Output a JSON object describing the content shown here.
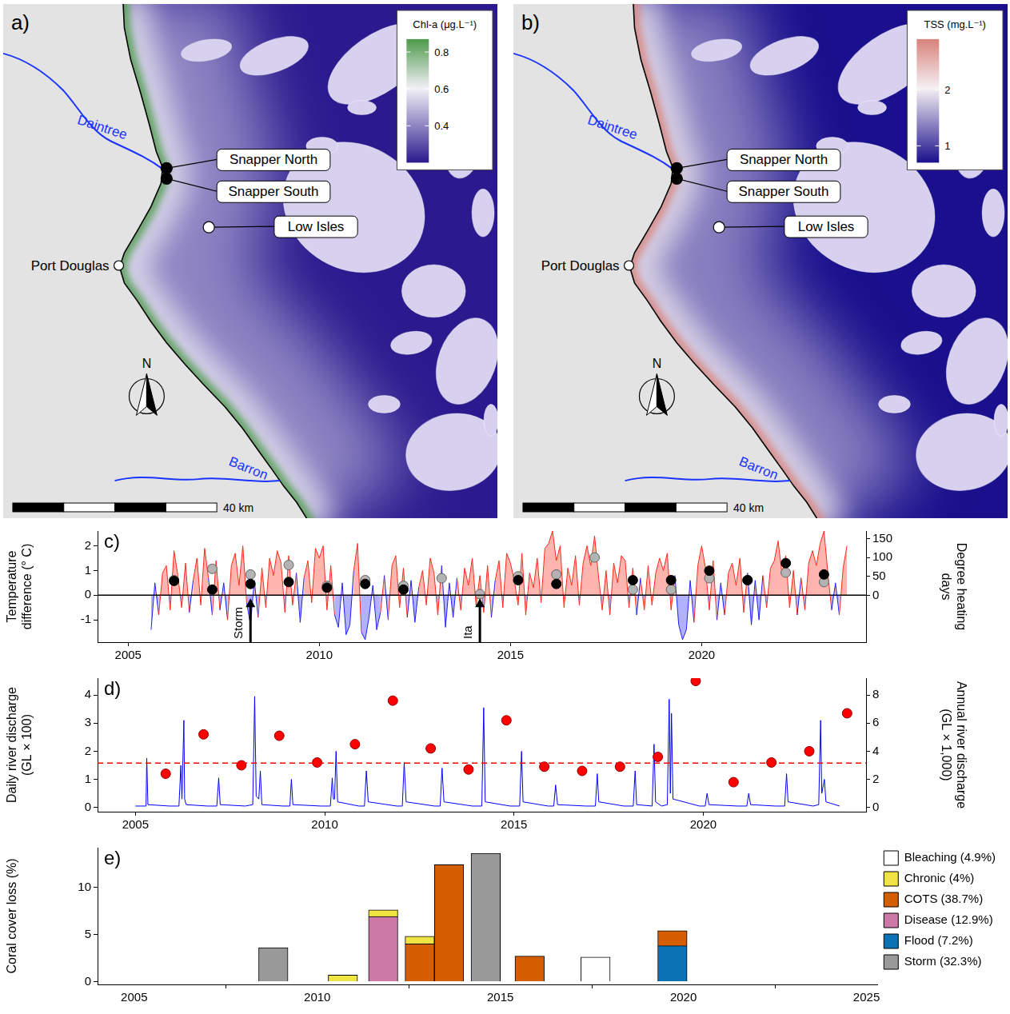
{
  "maps": [
    {
      "panel_label": "a)",
      "colorbar": {
        "title": "Chl-a (μg.L⁻¹)",
        "range": [
          0.2,
          0.87
        ],
        "ticks": [
          0.4,
          0.6,
          0.8
        ],
        "colors": [
          "#2a1a8e",
          "#f2f0f7",
          "#4e9a4b"
        ]
      },
      "rivers": [
        "Daintree",
        "Barron"
      ],
      "sites": [
        "Snapper North",
        "Snapper South",
        "Low Isles"
      ],
      "town": "Port Douglas",
      "north": "N",
      "scale_label": "40 km"
    },
    {
      "panel_label": "b)",
      "colorbar": {
        "title": "TSS (mg.L⁻¹)",
        "range": [
          0.7,
          2.9
        ],
        "ticks": [
          1,
          2
        ],
        "colors": [
          "#1a0f8c",
          "#f5f0f3",
          "#d8827a"
        ]
      },
      "rivers": [
        "Daintree",
        "Barron"
      ],
      "sites": [
        "Snapper North",
        "Snapper South",
        "Low Isles"
      ],
      "town": "Port Douglas",
      "north": "N",
      "scale_label": "40 km"
    }
  ],
  "chart_data": [
    {
      "type": "line",
      "panel_label": "c)",
      "y_label": [
        "Temperature",
        "difference (° C)"
      ],
      "y2_label": [
        "Degree heating",
        "days"
      ],
      "xlim": [
        2004.2,
        2024.3
      ],
      "xticks": [
        2005,
        2010,
        2015,
        2020
      ],
      "ylim": [
        -1.9,
        2.6
      ],
      "yticks": [
        -1,
        0,
        1,
        2
      ],
      "y2lim": [
        -124,
        170
      ],
      "y2ticks": [
        0,
        50,
        100,
        150
      ],
      "grid": false,
      "reference_line": {
        "value": 0,
        "color": "#000000",
        "line_style": "solid"
      },
      "annotations": [
        {
          "text": "Storm",
          "x": 2008.2
        },
        {
          "text": "Ita",
          "x": 2014.2
        }
      ],
      "series": [
        {
          "type": "area",
          "color": [
            "#ff2a1a",
            "#1f1fff"
          ],
          "x": [
            2005.6,
            2005.7,
            2005.8,
            2005.9,
            2006,
            2006.1,
            2006.2,
            2006.3,
            2006.4,
            2006.5,
            2006.6,
            2006.7,
            2006.8,
            2006.9,
            2007,
            2007.1,
            2007.2,
            2007.3,
            2007.4,
            2007.5,
            2007.6,
            2007.7,
            2007.8,
            2007.9,
            2008,
            2008.1,
            2008.2,
            2008.3,
            2008.4,
            2008.5,
            2008.6,
            2008.7,
            2008.8,
            2008.9,
            2009,
            2009.1,
            2009.2,
            2009.3,
            2009.4,
            2009.5,
            2009.6,
            2009.7,
            2009.8,
            2009.9,
            2010,
            2010.1,
            2010.2,
            2010.3,
            2010.4,
            2010.5,
            2010.6,
            2010.7,
            2010.8,
            2010.9,
            2011,
            2011.1,
            2011.2,
            2011.3,
            2011.4,
            2011.5,
            2011.6,
            2011.7,
            2011.8,
            2011.9,
            2012,
            2012.1,
            2012.2,
            2012.3,
            2012.4,
            2012.5,
            2012.6,
            2012.7,
            2012.8,
            2012.9,
            2013,
            2013.1,
            2013.2,
            2013.3,
            2013.4,
            2013.5,
            2013.6,
            2013.7,
            2013.8,
            2013.9,
            2014,
            2014.1,
            2014.2,
            2014.3,
            2014.4,
            2014.5,
            2014.6,
            2014.7,
            2014.8,
            2014.9,
            2015,
            2015.1,
            2015.2,
            2015.3,
            2015.4,
            2015.5,
            2015.6,
            2015.7,
            2015.8,
            2015.9,
            2016,
            2016.1,
            2016.2,
            2016.3,
            2016.4,
            2016.5,
            2016.6,
            2016.7,
            2016.8,
            2016.9,
            2017,
            2017.1,
            2017.2,
            2017.3,
            2017.4,
            2017.5,
            2017.6,
            2017.7,
            2017.8,
            2017.9,
            2018,
            2018.1,
            2018.2,
            2018.3,
            2018.4,
            2018.5,
            2018.6,
            2018.7,
            2018.8,
            2018.9,
            2019,
            2019.1,
            2019.2,
            2019.3,
            2019.4,
            2019.5,
            2019.6,
            2019.7,
            2019.8,
            2019.9,
            2020,
            2020.1,
            2020.2,
            2020.3,
            2020.4,
            2020.5,
            2020.6,
            2020.7,
            2020.8,
            2020.9,
            2021,
            2021.1,
            2021.2,
            2021.3,
            2021.4,
            2021.5,
            2021.6,
            2021.7,
            2021.8,
            2021.9,
            2022,
            2022.1,
            2022.2,
            2022.3,
            2022.4,
            2022.5,
            2022.6,
            2022.7,
            2022.8,
            2022.9,
            2023,
            2023.1,
            2023.2,
            2023.3,
            2023.4,
            2023.5,
            2023.6,
            2023.7,
            2023.8
          ],
          "values": [
            -1.4,
            0.5,
            -0.8,
            0.9,
            1.2,
            -0.6,
            1.8,
            0.8,
            -0.5,
            1.3,
            -0.7,
            0.6,
            1.5,
            -0.4,
            1.9,
            0.7,
            -0.8,
            1.4,
            -0.6,
            0.5,
            -1.0,
            1.2,
            1.7,
            0.4,
            2.0,
            -0.3,
            -1.2,
            0.6,
            -0.9,
            1.1,
            -0.5,
            1.5,
            0.8,
            1.8,
            1.3,
            -0.7,
            1.6,
            -0.4,
            0.9,
            -1.1,
            0.7,
            1.4,
            -0.3,
            1.9,
            1.5,
            2.0,
            -0.6,
            1.2,
            -0.8,
            -1.3,
            0.5,
            -1.6,
            -1.2,
            1.0,
            2.1,
            -1.5,
            -1.8,
            -0.9,
            0.4,
            -1.4,
            -0.7,
            0.8,
            -1.0,
            1.2,
            1.6,
            -0.5,
            1.1,
            -0.9,
            0.6,
            -1.1,
            0.3,
            1.0,
            -0.4,
            1.5,
            0.9,
            -0.8,
            1.2,
            -1.3,
            0.5,
            -0.9,
            0.7,
            -0.6,
            1.1,
            0.4,
            1.5,
            -0.4,
            0.8,
            -0.7,
            1.2,
            -0.9,
            0.6,
            1.4,
            -0.5,
            1.7,
            1.3,
            0.6,
            -0.4,
            1.7,
            -0.8,
            0.9,
            0.3,
            1.5,
            -0.3,
            1.9,
            2.1,
            2.6,
            1.4,
            2.0,
            -0.5,
            1.1,
            0.4,
            1.6,
            -0.4,
            1.3,
            2.0,
            1.2,
            2.4,
            0.8,
            -0.6,
            1.0,
            -0.8,
            1.3,
            0.5,
            1.6,
            1.4,
            -0.5,
            1.1,
            -0.8,
            0.7,
            -0.6,
            1.2,
            -0.4,
            0.9,
            1.5,
            1.0,
            1.7,
            -0.6,
            0.8,
            -1.2,
            -1.8,
            -1.4,
            0.6,
            -1.1,
            1.2,
            2.0,
            1.1,
            -0.6,
            1.4,
            -1.0,
            0.5,
            -0.8,
            0.9,
            1.3,
            0.4,
            1.5,
            -0.7,
            0.9,
            -1.2,
            0.6,
            -1.0,
            0.8,
            -0.5,
            1.1,
            1.4,
            2.2,
            0.9,
            1.6,
            -0.5,
            1.0,
            -0.8,
            0.7,
            -0.6,
            1.3,
            1.8,
            1.2,
            2.1,
            2.6,
            0.9,
            -0.6,
            0.5,
            -0.8,
            1.1,
            2.0
          ]
        },
        {
          "type": "scatter",
          "color": "#000000",
          "axis": "y2",
          "x": [
            2006.2,
            2007.2,
            2008.2,
            2009.2,
            2010.2,
            2011.2,
            2012.2,
            2015.2,
            2016.2,
            2018.2,
            2019.2,
            2020.2,
            2021.2,
            2022.2,
            2023.2
          ],
          "values": [
            38,
            15,
            30,
            35,
            20,
            30,
            15,
            40,
            30,
            40,
            40,
            65,
            40,
            85,
            55
          ]
        },
        {
          "type": "scatter",
          "color": "#b3b3b3",
          "axis": "y2",
          "x": [
            2006.2,
            2007.2,
            2008.2,
            2009.2,
            2010.2,
            2011.2,
            2012.2,
            2013.2,
            2014.2,
            2015.2,
            2016.2,
            2017.2,
            2018.2,
            2019.2,
            2020.2,
            2021.2,
            2022.2,
            2023.2
          ],
          "values": [
            40,
            70,
            55,
            80,
            25,
            40,
            25,
            45,
            3,
            50,
            55,
            100,
            15,
            15,
            45,
            40,
            60,
            35
          ]
        }
      ]
    },
    {
      "type": "line",
      "panel_label": "d)",
      "y_label": [
        "Daily river discharge",
        "(GL × 100)"
      ],
      "y2_label": [
        "Annual river discharge",
        "(GL × 1,000)"
      ],
      "xlim": [
        2004,
        2024.3
      ],
      "xticks": [
        2005,
        2010,
        2015,
        2020
      ],
      "ylim": [
        -0.15,
        4.6
      ],
      "yticks": [
        0,
        1,
        2,
        3,
        4
      ],
      "y2lim": [
        -0.3,
        9.2
      ],
      "y2ticks": [
        0,
        2,
        4,
        6,
        8
      ],
      "grid": false,
      "reference_line": {
        "value": 3.15,
        "color": "#ff0000",
        "line_style": "dashed",
        "axis": "y2"
      },
      "series": [
        {
          "type": "line",
          "color": "#0000ff",
          "x": [
            2005,
            2005.28,
            2005.3,
            2005.33,
            2005.9,
            2006.15,
            2006.2,
            2006.23,
            2006.28,
            2006.3,
            2006.34,
            2006.9,
            2007.15,
            2007.2,
            2007.24,
            2007.9,
            2008.1,
            2008.15,
            2008.19,
            2008.26,
            2008.3,
            2008.34,
            2008.9,
            2009.08,
            2009.12,
            2009.16,
            2009.9,
            2010.15,
            2010.2,
            2010.23,
            2010.26,
            2010.3,
            2010.34,
            2010.9,
            2011.05,
            2011.1,
            2011.15,
            2011.9,
            2012.05,
            2012.1,
            2012.15,
            2012.9,
            2013.05,
            2013.1,
            2013.15,
            2013.9,
            2014.15,
            2014.2,
            2014.24,
            2014.9,
            2015.15,
            2015.2,
            2015.24,
            2015.9,
            2016.05,
            2016.1,
            2016.15,
            2016.9,
            2017.15,
            2017.2,
            2017.24,
            2017.9,
            2018.15,
            2018.2,
            2018.24,
            2018.65,
            2018.7,
            2018.74,
            2018.9,
            2019.05,
            2019.1,
            2019.13,
            2019.16,
            2019.2,
            2019.9,
            2020.05,
            2020.1,
            2020.15,
            2020.9,
            2021.15,
            2021.2,
            2021.25,
            2021.9,
            2022.15,
            2022.2,
            2022.24,
            2022.9,
            2023.05,
            2023.1,
            2023.13,
            2023.2,
            2023.24,
            2023.6
          ],
          "values": [
            0.05,
            0.05,
            1.75,
            0.1,
            0.05,
            0.05,
            1.5,
            0.3,
            3.1,
            0.3,
            0.1,
            0.05,
            0.05,
            1.05,
            0.1,
            0.05,
            0.1,
            3.95,
            0.4,
            0.3,
            1.3,
            0.1,
            0.05,
            0.05,
            1.0,
            0.1,
            0.05,
            0.05,
            1.05,
            0.3,
            0.3,
            2.0,
            0.2,
            0.05,
            0.05,
            1.3,
            0.2,
            0.05,
            0.05,
            1.6,
            0.2,
            0.05,
            0.05,
            1.4,
            0.2,
            0.05,
            0.05,
            3.55,
            0.2,
            0.05,
            0.05,
            2.0,
            0.2,
            0.05,
            0.05,
            0.8,
            0.1,
            0.05,
            0.05,
            1.2,
            0.2,
            0.05,
            0.05,
            1.3,
            0.1,
            0.05,
            2.25,
            0.2,
            0.05,
            0.1,
            3.85,
            0.5,
            3.35,
            0.3,
            0.05,
            0.05,
            0.5,
            0.1,
            0.05,
            0.05,
            0.5,
            0.1,
            0.05,
            0.05,
            1.2,
            0.2,
            0.05,
            0.1,
            3.1,
            0.5,
            1.0,
            0.2,
            0.05
          ]
        },
        {
          "type": "scatter",
          "color": "#ff0000",
          "axis": "y2",
          "x": [
            2005.8,
            2006.8,
            2007.8,
            2008.8,
            2009.8,
            2010.8,
            2011.8,
            2012.8,
            2013.8,
            2014.8,
            2015.8,
            2016.8,
            2017.8,
            2018.8,
            2019.8,
            2020.8,
            2021.8,
            2022.8,
            2023.8
          ],
          "values": [
            2.4,
            5.2,
            3.0,
            5.1,
            3.2,
            4.5,
            7.6,
            4.2,
            2.7,
            6.2,
            2.9,
            2.6,
            2.9,
            3.6,
            9.0,
            1.8,
            3.2,
            4.0,
            6.7
          ]
        }
      ]
    },
    {
      "type": "bar",
      "panel_label": "e)",
      "y_label": "Coral cover loss (%)",
      "xlim": [
        2004,
        2025.3
      ],
      "xticks": [
        2005,
        2010,
        2015,
        2020,
        2025
      ],
      "ylim": [
        -0.3,
        14.2
      ],
      "yticks": [
        0,
        5,
        10
      ],
      "stacked": true,
      "grid": false,
      "legend": "right",
      "series": [
        {
          "name": "Flood (7.2%)",
          "color": "#0b72b5",
          "x": [
            2019.7
          ],
          "values": [
            3.8
          ]
        },
        {
          "name": "Disease (12.9%)",
          "color": "#cc79a7",
          "x": [
            2011.8
          ],
          "values": [
            6.9
          ]
        },
        {
          "name": "COTS (38.7%)",
          "color": "#d55e00",
          "x": [
            2012.8,
            2013.6,
            2015.8,
            2019.7
          ],
          "values": [
            4.0,
            12.4,
            2.7,
            1.6
          ]
        },
        {
          "name": "Chronic (4%)",
          "color": "#f0e442",
          "x": [
            2010.7,
            2011.8,
            2012.8
          ],
          "values": [
            0.7,
            0.7,
            0.8
          ]
        },
        {
          "name": "Storm (32.3%)",
          "color": "#999999",
          "x": [
            2008.8,
            2014.6
          ],
          "values": [
            3.6,
            13.6
          ]
        },
        {
          "name": "Bleaching (4.9%)",
          "color": "#ffffff",
          "x": [
            2017.6
          ],
          "values": [
            2.6
          ]
        }
      ]
    }
  ]
}
